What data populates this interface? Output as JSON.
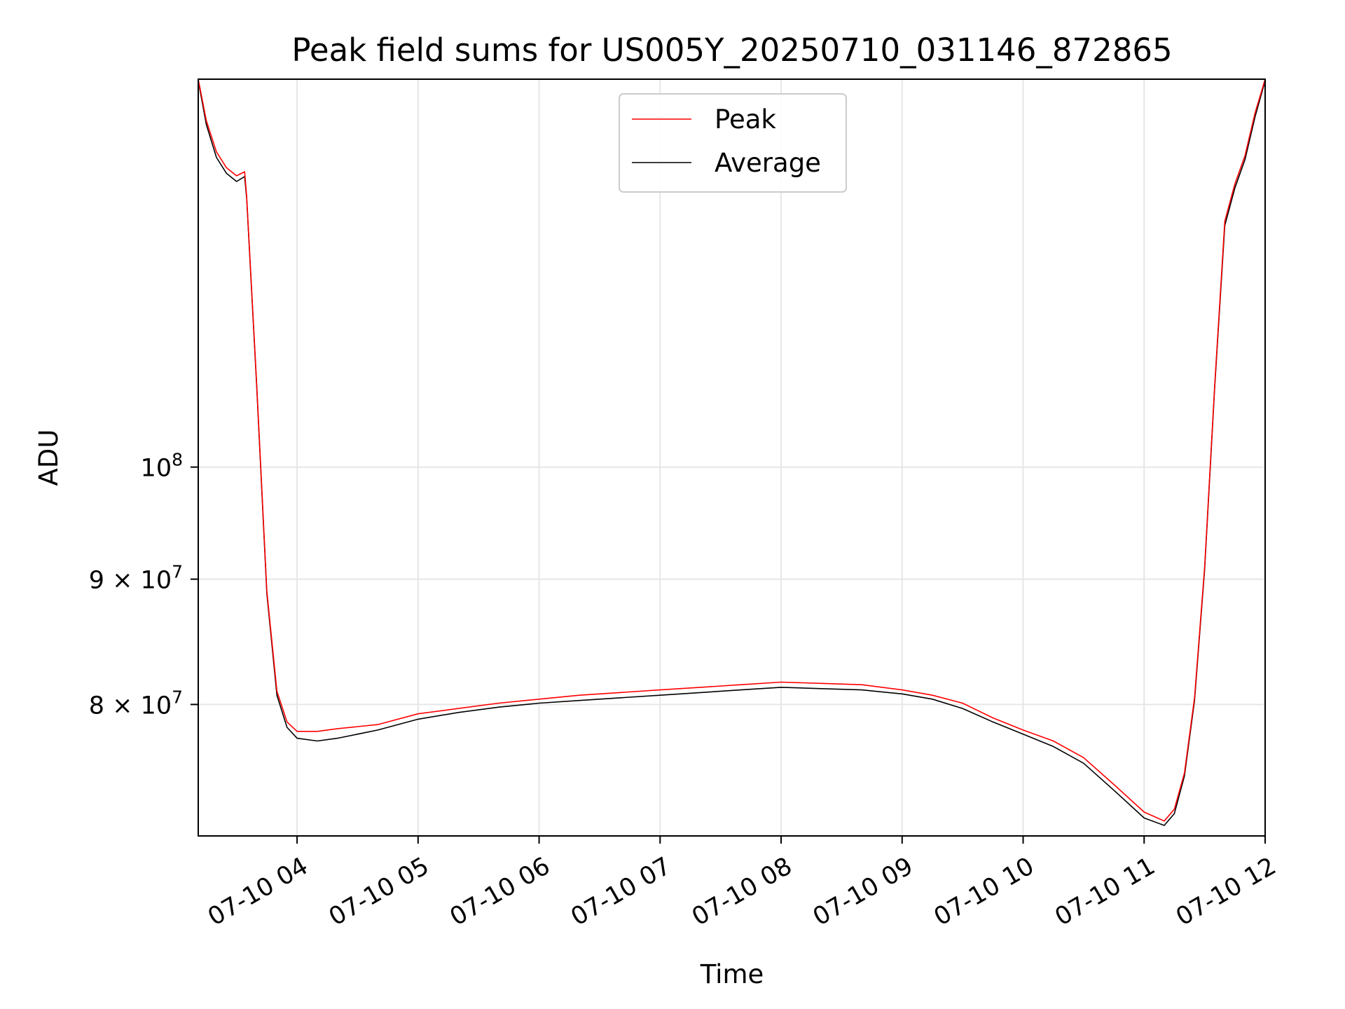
{
  "chart_data": {
    "type": "line",
    "title": "Peak field sums for US005Y_20250710_031146_872865",
    "xlabel": "Time",
    "ylabel": "ADU",
    "x_scale": "time",
    "y_scale": "log",
    "xlim": [
      "2025-07-10 03:11",
      "2025-07-10 12:00"
    ],
    "ylim": [
      70700000,
      144000000
    ],
    "grid": true,
    "legend_position": "upper center",
    "x_ticks": [
      {
        "label": "07-10 04",
        "value": "2025-07-10 04:00"
      },
      {
        "label": "07-10 05",
        "value": "2025-07-10 05:00"
      },
      {
        "label": "07-10 06",
        "value": "2025-07-10 06:00"
      },
      {
        "label": "07-10 07",
        "value": "2025-07-10 07:00"
      },
      {
        "label": "07-10 08",
        "value": "2025-07-10 08:00"
      },
      {
        "label": "07-10 09",
        "value": "2025-07-10 09:00"
      },
      {
        "label": "07-10 10",
        "value": "2025-07-10 10:00"
      },
      {
        "label": "07-10 11",
        "value": "2025-07-10 11:00"
      },
      {
        "label": "07-10 12",
        "value": "2025-07-10 12:00"
      }
    ],
    "y_ticks": [
      {
        "base": "8",
        "times": "×",
        "power": "10",
        "exp": "7",
        "value": 80000000
      },
      {
        "base": "9",
        "times": "×",
        "power": "10",
        "exp": "7",
        "value": 90000000
      },
      {
        "base": "",
        "times": "",
        "power": "10",
        "exp": "8",
        "value": 100000000
      }
    ],
    "series": [
      {
        "name": "Peak",
        "color": "#ff0000",
        "x": [
          "2025-07-10 03:11",
          "2025-07-10 03:15",
          "2025-07-10 03:20",
          "2025-07-10 03:25",
          "2025-07-10 03:30",
          "2025-07-10 03:34",
          "2025-07-10 03:35",
          "2025-07-10 03:40",
          "2025-07-10 03:45",
          "2025-07-10 03:50",
          "2025-07-10 03:55",
          "2025-07-10 04:00",
          "2025-07-10 04:10",
          "2025-07-10 04:20",
          "2025-07-10 04:40",
          "2025-07-10 05:00",
          "2025-07-10 05:20",
          "2025-07-10 05:40",
          "2025-07-10 06:00",
          "2025-07-10 06:20",
          "2025-07-10 06:40",
          "2025-07-10 07:00",
          "2025-07-10 07:20",
          "2025-07-10 07:40",
          "2025-07-10 08:00",
          "2025-07-10 08:20",
          "2025-07-10 08:40",
          "2025-07-10 09:00",
          "2025-07-10 09:15",
          "2025-07-10 09:30",
          "2025-07-10 09:45",
          "2025-07-10 10:00",
          "2025-07-10 10:15",
          "2025-07-10 10:30",
          "2025-07-10 10:45",
          "2025-07-10 11:00",
          "2025-07-10 11:10",
          "2025-07-10 11:15",
          "2025-07-10 11:20",
          "2025-07-10 11:25",
          "2025-07-10 11:30",
          "2025-07-10 11:35",
          "2025-07-10 11:40",
          "2025-07-10 11:45",
          "2025-07-10 11:50",
          "2025-07-10 11:55",
          "2025-07-10 12:00"
        ],
        "values": [
          144000000,
          138500000,
          134500000,
          132500000,
          131500000,
          132000000,
          129000000,
          108000000,
          89000000,
          81000000,
          78700000,
          78000000,
          78000000,
          78200000,
          78500000,
          79300000,
          79700000,
          80100000,
          80400000,
          80700000,
          80900000,
          81100000,
          81300000,
          81500000,
          81700000,
          81600000,
          81500000,
          81100000,
          80700000,
          80100000,
          79000000,
          78100000,
          77300000,
          76100000,
          74200000,
          72300000,
          71700000,
          72500000,
          75000000,
          80500000,
          91000000,
          108000000,
          126000000,
          130500000,
          134000000,
          139500000,
          144000000
        ]
      },
      {
        "name": "Average",
        "color": "#000000",
        "x": [
          "2025-07-10 03:11",
          "2025-07-10 03:15",
          "2025-07-10 03:20",
          "2025-07-10 03:25",
          "2025-07-10 03:30",
          "2025-07-10 03:34",
          "2025-07-10 03:35",
          "2025-07-10 03:40",
          "2025-07-10 03:45",
          "2025-07-10 03:50",
          "2025-07-10 03:55",
          "2025-07-10 04:00",
          "2025-07-10 04:10",
          "2025-07-10 04:20",
          "2025-07-10 04:40",
          "2025-07-10 05:00",
          "2025-07-10 05:20",
          "2025-07-10 05:40",
          "2025-07-10 06:00",
          "2025-07-10 06:20",
          "2025-07-10 06:40",
          "2025-07-10 07:00",
          "2025-07-10 07:20",
          "2025-07-10 07:40",
          "2025-07-10 08:00",
          "2025-07-10 08:20",
          "2025-07-10 08:40",
          "2025-07-10 09:00",
          "2025-07-10 09:15",
          "2025-07-10 09:30",
          "2025-07-10 09:45",
          "2025-07-10 10:00",
          "2025-07-10 10:15",
          "2025-07-10 10:30",
          "2025-07-10 10:45",
          "2025-07-10 11:00",
          "2025-07-10 11:10",
          "2025-07-10 11:15",
          "2025-07-10 11:20",
          "2025-07-10 11:25",
          "2025-07-10 11:30",
          "2025-07-10 11:35",
          "2025-07-10 11:40",
          "2025-07-10 11:45",
          "2025-07-10 11:50",
          "2025-07-10 11:55",
          "2025-07-10 12:00"
        ],
        "values": [
          143800000,
          138000000,
          133800000,
          131800000,
          130800000,
          131400000,
          128800000,
          107800000,
          88800000,
          80700000,
          78300000,
          77500000,
          77300000,
          77500000,
          78100000,
          78900000,
          79400000,
          79800000,
          80100000,
          80300000,
          80500000,
          80700000,
          80900000,
          81100000,
          81300000,
          81200000,
          81100000,
          80800000,
          80400000,
          79700000,
          78700000,
          77800000,
          76900000,
          75700000,
          73800000,
          71900000,
          71400000,
          72200000,
          74800000,
          80300000,
          90800000,
          107800000,
          125500000,
          130000000,
          133500000,
          139000000,
          143800000
        ]
      }
    ]
  }
}
